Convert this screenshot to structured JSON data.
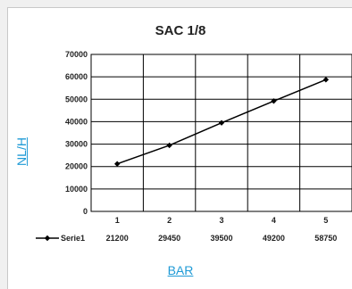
{
  "chart_data": {
    "type": "line",
    "title": "SAC 1/8",
    "xlabel": "BAR",
    "ylabel": "NL/H",
    "categories": [
      "1",
      "2",
      "3",
      "4",
      "5"
    ],
    "series": [
      {
        "name": "Serie1",
        "values": [
          21200,
          29450,
          39500,
          49200,
          58750
        ]
      }
    ],
    "ylim": [
      0,
      70000
    ],
    "yticks": [
      "0",
      "10000",
      "20000",
      "30000",
      "40000",
      "50000",
      "60000",
      "70000"
    ],
    "grid": true,
    "legend": "bottom-left data table",
    "series_color": "#000000"
  }
}
